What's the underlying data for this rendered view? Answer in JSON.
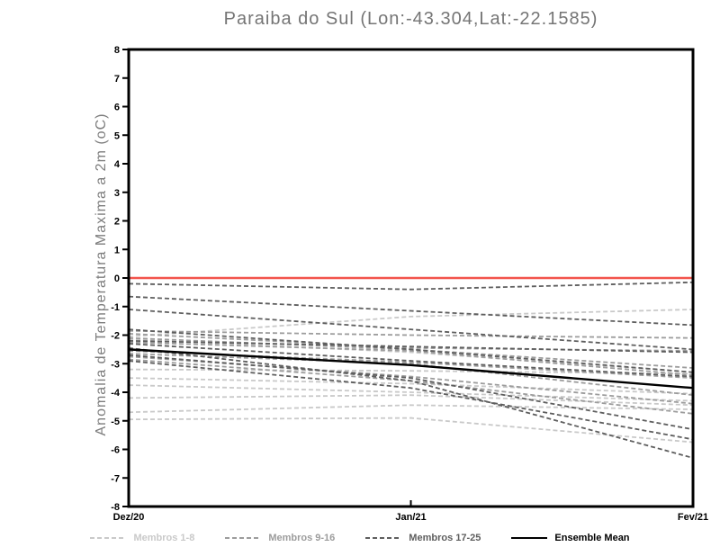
{
  "chart_data": {
    "type": "line",
    "title": "Paraiba do Sul (Lon:-43.304,Lat:-22.1585)",
    "xlabel": "",
    "ylabel": "Anomalia de Temperatura Maxima a 2m (oC)",
    "x_categories": [
      "Dez/20",
      "Jan/21",
      "Fev/21"
    ],
    "ylim": [
      -8,
      8
    ],
    "y_tick_step": 1,
    "grid": false,
    "legend_position": "bottom",
    "frame_color": "#000000",
    "zero_line": {
      "value": 0,
      "color": "#f2544b"
    },
    "groups": [
      {
        "name": "Membros 1-8",
        "color": "#c9c9c9",
        "style": "dashed",
        "members": [
          [
            -3.2,
            -3.25,
            -3.35
          ],
          [
            -3.5,
            -3.7,
            -4.05
          ],
          [
            -3.75,
            -4.0,
            -4.3
          ],
          [
            -4.2,
            -4.1,
            -4.45
          ],
          [
            -4.7,
            -4.45,
            -4.6
          ],
          [
            -4.95,
            -4.9,
            -5.75
          ],
          [
            -2.05,
            -1.35,
            -1.1
          ],
          [
            -2.15,
            -2.6,
            -3.3
          ]
        ]
      },
      {
        "name": "Membros 9-16",
        "color": "#9c9c9c",
        "style": "dashed",
        "members": [
          [
            -1.85,
            -2.0,
            -2.1
          ],
          [
            -1.95,
            -2.45,
            -2.55
          ],
          [
            -2.1,
            -2.5,
            -3.15
          ],
          [
            -2.25,
            -2.55,
            -3.4
          ],
          [
            -2.55,
            -2.95,
            -3.5
          ],
          [
            -2.65,
            -3.0,
            -4.1
          ],
          [
            -2.75,
            -3.45,
            -4.4
          ],
          [
            -2.85,
            -3.6,
            -4.75
          ]
        ]
      },
      {
        "name": "Membros 17-25",
        "color": "#5e5e5e",
        "style": "dashed",
        "members": [
          [
            -0.2,
            -0.4,
            -0.15
          ],
          [
            -0.65,
            -1.15,
            -1.65
          ],
          [
            -1.1,
            -1.8,
            -2.5
          ],
          [
            -1.8,
            -2.5,
            -3.3
          ],
          [
            -2.2,
            -2.4,
            -2.6
          ],
          [
            -2.3,
            -2.9,
            -3.45
          ],
          [
            -2.45,
            -3.6,
            -6.3
          ],
          [
            -2.7,
            -3.5,
            -5.3
          ],
          [
            -2.9,
            -3.85,
            -5.65
          ]
        ]
      }
    ],
    "mean": {
      "name": "Ensemble Mean",
      "color": "#000000",
      "style": "solid",
      "values": [
        -2.5,
        -3.05,
        -3.85
      ]
    }
  }
}
